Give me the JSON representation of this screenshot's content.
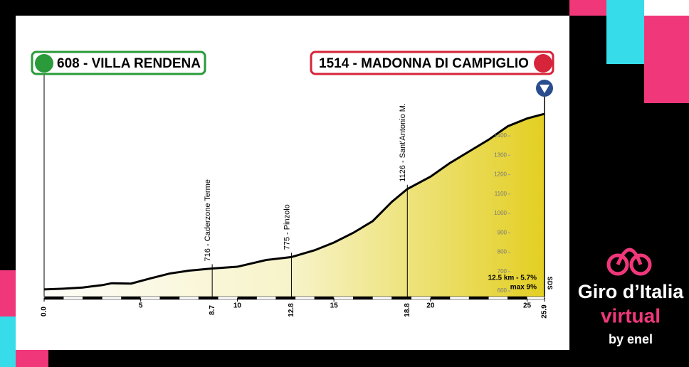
{
  "chart_data": {
    "type": "area",
    "start_label": "608 - VILLA RENDENA",
    "finish_label": "1514 - MADONNA DI CAMPIGLIO",
    "x": [
      0,
      1,
      2,
      3,
      3.5,
      4.5,
      5.5,
      6.5,
      7.5,
      8.7,
      10,
      11.5,
      12.8,
      14,
      15,
      16,
      17,
      18,
      18.8,
      20,
      21,
      22,
      23,
      24,
      25,
      25.9
    ],
    "series": [
      {
        "values": [
          608,
          612,
          618,
          630,
          640,
          638,
          665,
          690,
          705,
          716,
          725,
          760,
          775,
          810,
          850,
          900,
          960,
          1060,
          1126,
          1190,
          1260,
          1320,
          1380,
          1450,
          1490,
          1514
        ],
        "color": "#000000"
      }
    ],
    "xlim": [
      0,
      25.9
    ],
    "ylim": [
      560,
      1560
    ],
    "xticks": [
      {
        "value": 0,
        "label": "0.0"
      },
      5,
      10,
      15,
      20,
      25,
      25.9
    ],
    "yticks": [
      600,
      700,
      800,
      900,
      1000,
      1100,
      1200,
      1300,
      1400
    ],
    "landmarks": [
      {
        "km": 8.7,
        "label": "716 - Caderzone Terme"
      },
      {
        "km": 12.8,
        "label": "775 - Pinzolo"
      },
      {
        "km": 18.8,
        "label": "1126 - Sant'Antonio M."
      }
    ],
    "climb_note": "12.5 km - 5.7%",
    "climb_max": "max 9%",
    "credit": "SDS"
  },
  "logo": {
    "name": "Giro d’Italia",
    "edition": "virtual",
    "sponsor": "by enel"
  }
}
